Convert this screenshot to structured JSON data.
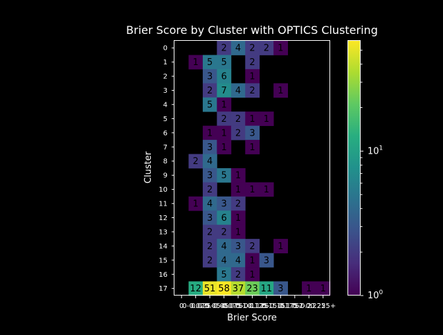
{
  "chart_data": {
    "type": "heatmap",
    "title": "Brier Score by Cluster with OPTICS Clustering",
    "xlabel": "Brier Score",
    "ylabel": "Cluster",
    "x_categories": [
      "0",
      "0-0.025",
      "0.025-0.05",
      "0.05-0.075",
      "0.075-0.1",
      "0.1-0.125",
      "0.125-0.15",
      "0.15-0.175",
      "0.175-0.2",
      "0.2-0.225",
      "0.225+"
    ],
    "x_tick_labels": [
      "0",
      "0-0.025",
      "0.025-0.05",
      "0.05-0.075",
      "0.075-0.1",
      "0.1-0.125",
      "0.125-0.15",
      "0.15-0.175",
      "0.175-0.2",
      "0.2-0.225",
      "0.225+"
    ],
    "y_categories": [
      "0",
      "1",
      "2",
      "3",
      "4",
      "5",
      "6",
      "7",
      "8",
      "9",
      "10",
      "11",
      "12",
      "13",
      "14",
      "15",
      "16",
      "17"
    ],
    "values": [
      [
        null,
        null,
        null,
        2,
        4,
        2,
        2,
        1,
        null,
        null,
        null
      ],
      [
        null,
        1,
        5,
        5,
        null,
        2,
        null,
        null,
        null,
        null,
        null
      ],
      [
        null,
        null,
        3,
        6,
        null,
        1,
        null,
        null,
        null,
        null,
        null
      ],
      [
        null,
        null,
        2,
        7,
        4,
        2,
        null,
        1,
        null,
        null,
        null
      ],
      [
        null,
        null,
        5,
        1,
        null,
        null,
        null,
        null,
        null,
        null,
        null
      ],
      [
        null,
        null,
        null,
        2,
        2,
        1,
        1,
        null,
        null,
        null,
        null
      ],
      [
        null,
        null,
        1,
        1,
        2,
        3,
        null,
        null,
        null,
        null,
        null
      ],
      [
        null,
        null,
        3,
        1,
        null,
        1,
        null,
        null,
        null,
        null,
        null
      ],
      [
        null,
        2,
        4,
        null,
        null,
        null,
        null,
        null,
        null,
        null,
        null
      ],
      [
        null,
        null,
        3,
        5,
        1,
        null,
        null,
        null,
        null,
        null,
        null
      ],
      [
        null,
        null,
        2,
        null,
        1,
        1,
        1,
        null,
        null,
        null,
        null
      ],
      [
        null,
        1,
        4,
        3,
        2,
        null,
        null,
        null,
        null,
        null,
        null
      ],
      [
        null,
        null,
        3,
        6,
        1,
        null,
        null,
        null,
        null,
        null,
        null
      ],
      [
        null,
        null,
        2,
        2,
        1,
        null,
        null,
        null,
        null,
        null,
        null
      ],
      [
        null,
        null,
        2,
        4,
        3,
        2,
        null,
        1,
        null,
        null,
        null
      ],
      [
        null,
        null,
        2,
        4,
        4,
        1,
        3,
        null,
        null,
        null,
        null
      ],
      [
        null,
        null,
        null,
        5,
        2,
        1,
        null,
        null,
        null,
        null,
        null
      ],
      [
        null,
        12,
        51,
        58,
        37,
        23,
        11,
        3,
        null,
        1,
        1
      ]
    ],
    "colorbar": {
      "scale": "log",
      "range": [
        1,
        58
      ],
      "ticks": [
        "10^0",
        "10^1"
      ],
      "colormap": "viridis"
    },
    "grid": false,
    "legend": "none",
    "colors": {
      "background": "#000000",
      "text": "#ffffff",
      "annotation_text": "#000000"
    }
  }
}
